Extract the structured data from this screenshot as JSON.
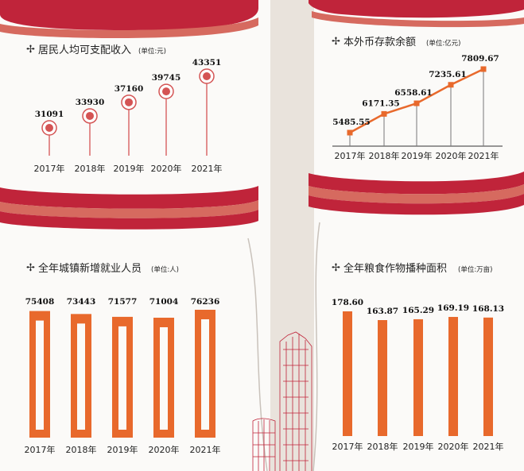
{
  "colors": {
    "red": "#c0243a",
    "band": "#d66a5f",
    "orange": "#e8692c",
    "ring": "#d45454",
    "grey": "#777777"
  },
  "chart_data": [
    {
      "type": "scatter",
      "title": "居民人均可支配收入",
      "unit": "(单位:元)",
      "categories": [
        "2017年",
        "2018年",
        "2019年",
        "2020年",
        "2021年"
      ],
      "values": [
        31091,
        33930,
        37160,
        39745,
        43351
      ],
      "value_labels": [
        "31091",
        "33930",
        "37160",
        "39745",
        "43351"
      ],
      "series_color": "#d45454"
    },
    {
      "type": "line",
      "title": "本外币存款余额",
      "unit": "(单位:亿元)",
      "categories": [
        "2017年",
        "2018年",
        "2019年",
        "2020年",
        "2021年"
      ],
      "values": [
        5485.55,
        6171.35,
        6558.61,
        7235.61,
        7809.67
      ],
      "value_labels": [
        "5485.55",
        "6171.35",
        "6558.61",
        "7235.61",
        "7809.67"
      ],
      "series_color": "#e8692c"
    },
    {
      "type": "bar",
      "title": "全年城镇新增就业人员",
      "unit": "(单位:人)",
      "categories": [
        "2017年",
        "2018年",
        "2019年",
        "2020年",
        "2021年"
      ],
      "values": [
        75408,
        73443,
        71577,
        71004,
        76236
      ],
      "value_labels": [
        "75408",
        "73443",
        "71577",
        "71004",
        "76236"
      ],
      "series_color": "#e8692c"
    },
    {
      "type": "bar",
      "title": "全年粮食作物播种面积",
      "unit": "(单位:万亩)",
      "categories": [
        "2017年",
        "2018年",
        "2019年",
        "2020年",
        "2021年"
      ],
      "values": [
        178.6,
        163.87,
        165.29,
        169.19,
        168.13
      ],
      "value_labels": [
        "178.60",
        "163.87",
        "165.29",
        "169.19",
        "168.13"
      ],
      "series_color": "#e8692c"
    }
  ]
}
